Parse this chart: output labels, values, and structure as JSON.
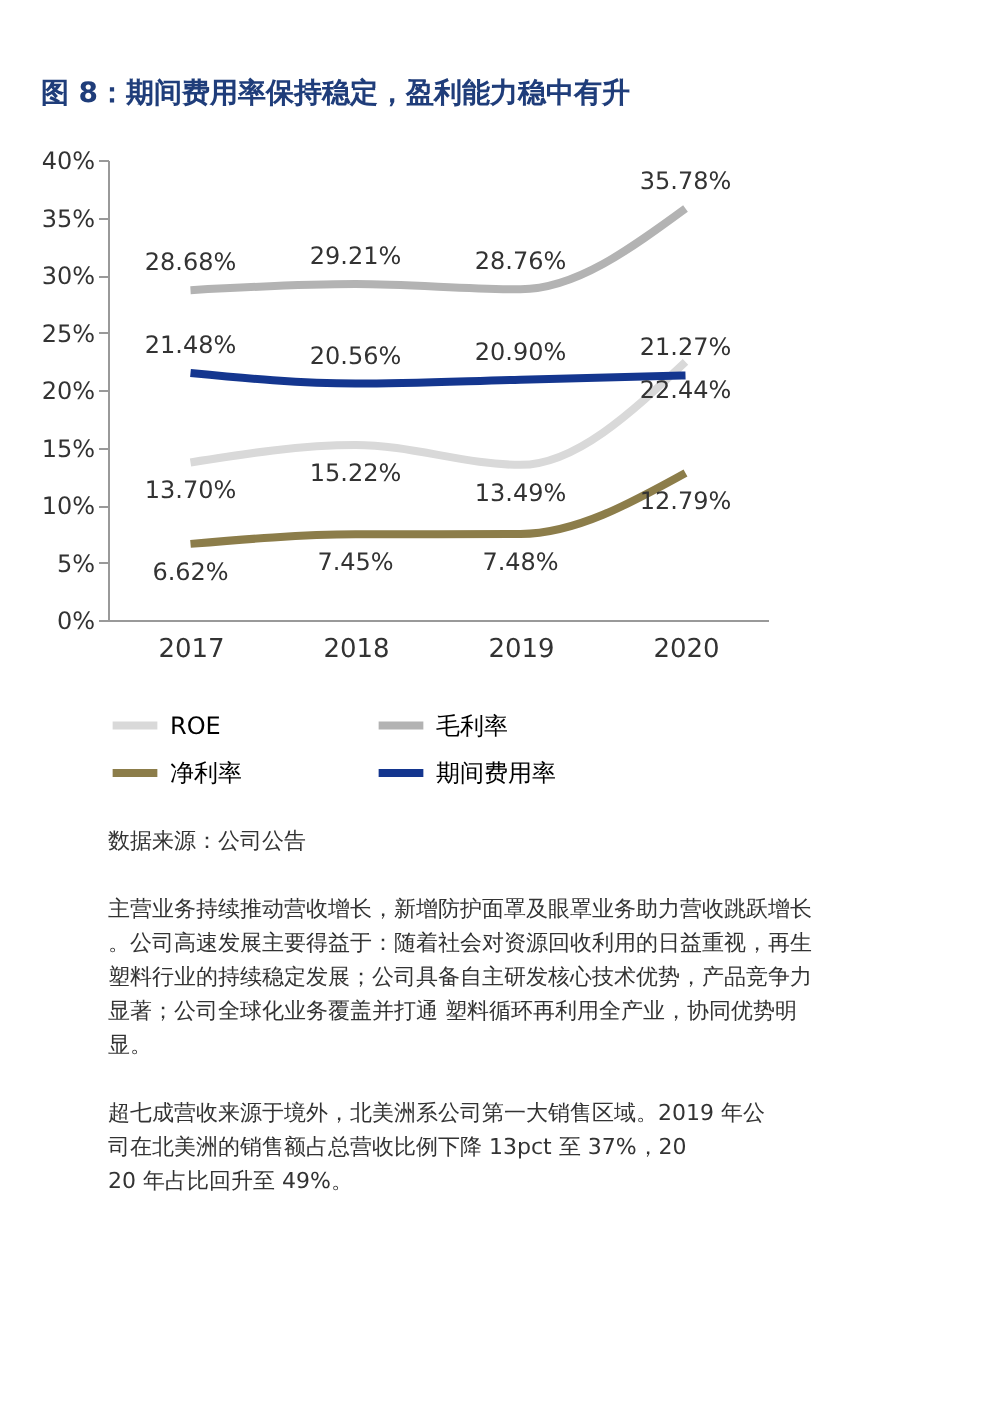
{
  "chart_data": {
    "type": "line",
    "title": "图 8：期间费用率保持稳定，盈利能力稳中有升",
    "categories": [
      "2017",
      "2018",
      "2019",
      "2020"
    ],
    "series": [
      {
        "name": "ROE",
        "color": "#d9d9d9",
        "values": [
          13.7,
          15.22,
          13.49,
          22.44
        ],
        "value_labels": [
          "13.70%",
          "15.22%",
          "13.49%",
          "22.44%"
        ]
      },
      {
        "name": "毛利率",
        "color": "#b3b3b3",
        "values": [
          28.68,
          29.21,
          28.76,
          35.78
        ],
        "value_labels": [
          "28.68%",
          "29.21%",
          "28.76%",
          "35.78%"
        ]
      },
      {
        "name": "净利率",
        "color": "#8c7d4a",
        "values": [
          6.62,
          7.45,
          7.48,
          12.79
        ],
        "value_labels": [
          "6.62%",
          "7.45%",
          "7.48%",
          "12.79%"
        ]
      },
      {
        "name": "期间费用率",
        "color": "#14368f",
        "values": [
          21.48,
          20.56,
          20.9,
          21.27
        ],
        "value_labels": [
          "21.48%",
          "20.56%",
          "20.90%",
          "21.27%"
        ]
      }
    ],
    "ylim": [
      0,
      40
    ],
    "yticks": [
      {
        "value": 0,
        "label": "0%"
      },
      {
        "value": 5,
        "label": "5%"
      },
      {
        "value": 10,
        "label": "10%"
      },
      {
        "value": 15,
        "label": "15%"
      },
      {
        "value": 20,
        "label": "20%"
      },
      {
        "value": 25,
        "label": "25%"
      },
      {
        "value": 30,
        "label": "30%"
      },
      {
        "value": 35,
        "label": "35%"
      },
      {
        "value": 40,
        "label": "40%"
      }
    ],
    "grid": false,
    "legend": "bottom",
    "marker": "none",
    "annotations": [
      "数据来源：公司公告",
      "主营业务持续推动营收增长，新增防护面罩及眼罩业务助力营收跳跃增长。公司高速发展主要得益于：随着社会对资源回收利用的日益重视，再生塑料行业的持续稳定发展；公司具备自主研发核心技术优势，产品竞争力显著；公司全球化业务覆盖并打通 塑料循环再利用全产业，协同优势明显。",
      "超七成营收来源于境外，北美洲系公司第一大销售区域。2019 年公司在北美洲的销售额占总营收比例下降 13pct 至 37%，2020 年占比回升至 49%。"
    ]
  }
}
